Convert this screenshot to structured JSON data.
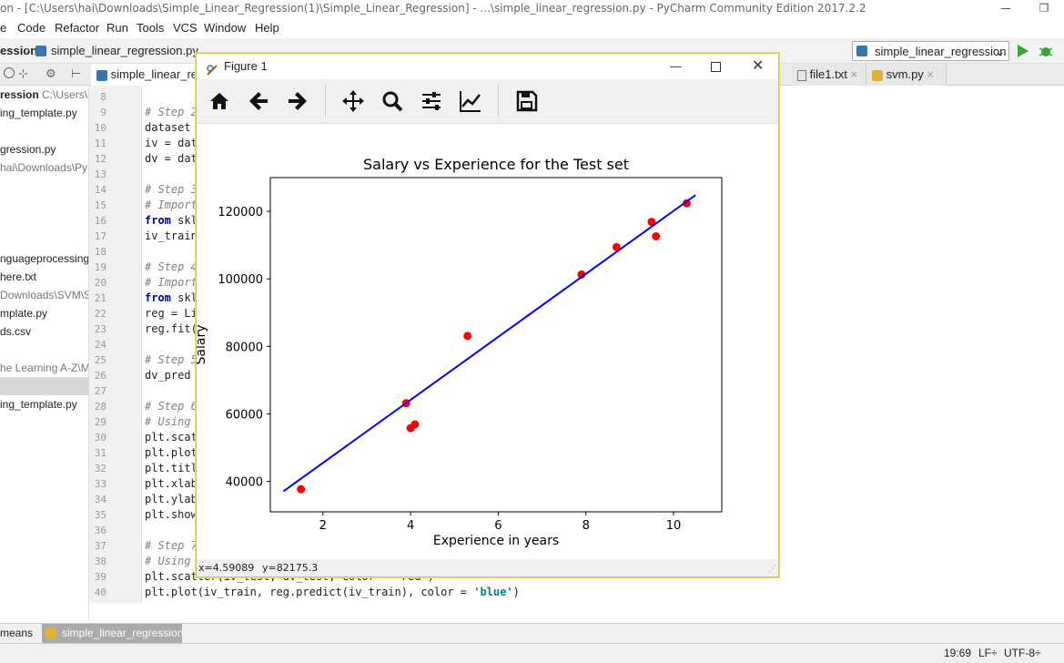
{
  "window": {
    "title": "on - [C:\\Users\\hai\\Downloads\\Simple_Linear_Regression(1)\\Simple_Linear_Regression] - ...\\simple_linear_regression.py - PyCharm Community Edition 2017.2.2",
    "minimize": "—",
    "restore": "❐"
  },
  "menu": [
    "e",
    "Code",
    "Refactor",
    "Run",
    "Tools",
    "VCS",
    "Window",
    "Help"
  ],
  "nav": {
    "crumb1": "ession",
    "crumb2": "simple_linear_regression.py",
    "run_config": "simple_linear_regression"
  },
  "tabs": [
    {
      "label": "simple_linear_reg"
    },
    {
      "label": "file1.txt"
    },
    {
      "label": "svm.py"
    }
  ],
  "project": {
    "root_label": "ression",
    "root_path": "C:\\Users\\h",
    "items": [
      "ing_template.py",
      "gression.py",
      "hai\\Downloads\\Py",
      "nguageprocessing",
      "here.txt",
      "Downloads\\SVM\\S",
      "mplate.py",
      "ds.csv",
      "he Learning A-Z\\M",
      "ing_template.py"
    ]
  },
  "gutter": [
    "8",
    "9",
    "10",
    "11",
    "12",
    "13",
    "14",
    "15",
    "16",
    "17",
    "18",
    "19",
    "20",
    "21",
    "22",
    "23",
    "24",
    "25",
    "26",
    "27",
    "28",
    "29",
    "30",
    "31",
    "32",
    "33",
    "34",
    "35",
    "36",
    "37",
    "38",
    "39",
    "40"
  ],
  "code": {
    "l9": "# Step 2",
    "l10": "dataset",
    "l11": "iv = dat",
    "l12": "dv = dat",
    "l14": "# Step 3",
    "l15": "# Import",
    "l16a": "from",
    "l16b": " skl",
    "l17": "iv_train",
    "l19": "# Step 4",
    "l20": "# Import",
    "l21a": "from",
    "l21b": " skl",
    "l22": "reg = Li",
    "l23": "reg.fit(",
    "l25": "# Step 5",
    "l26": "dv_pred ",
    "l28": "# Step 6",
    "l29": "# Using ",
    "l30": "plt.scat",
    "l31": "plt.plot",
    "l32": "plt.titl",
    "l33": "plt.xlab",
    "l34": "plt.ylab",
    "l35": "plt.show",
    "l37": "# Step 7",
    "l38": "# Using ",
    "l39": "plt.scatter(iv_test, dv_test, color = 'red')",
    "l40a": "plt.plot(iv_train, reg.predict(iv_train), color = ",
    "l40b": "'blue'",
    "l40c": ")"
  },
  "bottom": {
    "tool1": "means",
    "tool2": "simple_linear_regression"
  },
  "status": {
    "position": "19:69",
    "line_sep": "LF÷",
    "encoding": "UTF-8÷"
  },
  "figure": {
    "title": "Figure 1",
    "status_x": "x=4.59089",
    "status_y": "y=82175.3"
  },
  "chart_data": {
    "type": "scatter",
    "title": "Salary vs Experience for the Test set",
    "xlabel": "Experience in years",
    "ylabel": "Salary",
    "xlim": [
      0.8,
      11.1
    ],
    "ylim": [
      31000,
      130000
    ],
    "xticks": [
      2,
      4,
      6,
      8,
      10
    ],
    "yticks": [
      40000,
      60000,
      80000,
      100000,
      120000
    ],
    "grid": false,
    "series": [
      {
        "kind": "scatter",
        "color": "#ff0000",
        "x": [
          1.5,
          3.9,
          4.0,
          4.1,
          5.3,
          7.9,
          8.7,
          9.5,
          9.6,
          10.3
        ],
        "y": [
          37700,
          63200,
          55800,
          56900,
          83100,
          101300,
          109400,
          116900,
          112600,
          122400
        ]
      },
      {
        "kind": "line",
        "color": "#0000ff",
        "x": [
          1.1,
          10.5
        ],
        "y": [
          37100,
          124800
        ]
      }
    ]
  }
}
